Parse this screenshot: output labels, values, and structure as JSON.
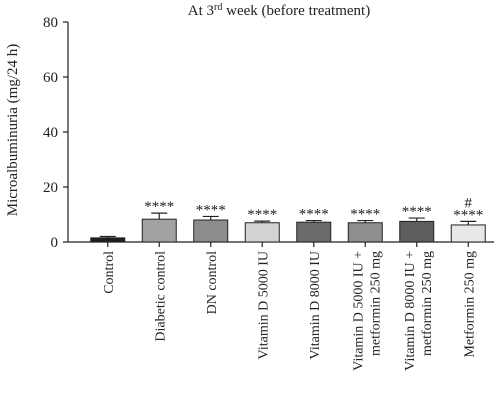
{
  "chart_data": {
    "type": "bar",
    "title": "At 3rd week (before treatment)",
    "title_parts": {
      "prefix": "At 3",
      "superscript": "rd",
      "suffix": " week (before treatment)"
    },
    "xlabel": "",
    "ylabel": "Microalbuminuria (mg/24 h)",
    "ylim": [
      0,
      80
    ],
    "yticks": [
      "0",
      "20",
      "40",
      "60",
      "80"
    ],
    "grid": false,
    "categories": [
      [
        "Control"
      ],
      [
        "Diabetic control"
      ],
      [
        "DN control"
      ],
      [
        "Vitamin D 5000 IU"
      ],
      [
        "Vitamin D 8000 IU"
      ],
      [
        "Vitamin D 5000 IU +",
        "metformin 250 mg"
      ],
      [
        "Vitamin D 8000 IU +",
        "metformin 250 mg"
      ],
      [
        "Metformin 250 mg"
      ]
    ],
    "values": [
      1.5,
      8.3,
      8.0,
      7.0,
      7.2,
      7.0,
      7.5,
      6.2
    ],
    "errors": [
      0.5,
      2.2,
      1.3,
      0.6,
      0.6,
      0.8,
      1.2,
      1.3
    ],
    "bar_colors": [
      "#1e1e1e",
      "#a2a2a2",
      "#8c8c8c",
      "#d2d2d2",
      "#6a6a6a",
      "#8e8e8e",
      "#5e5e5e",
      "#e8e8e8"
    ],
    "significance": [
      "",
      "****",
      "****",
      "****",
      "****",
      "****",
      "****",
      "****"
    ],
    "significance_extra": [
      "",
      "",
      "",
      "",
      "",
      "",
      "",
      "#"
    ]
  }
}
